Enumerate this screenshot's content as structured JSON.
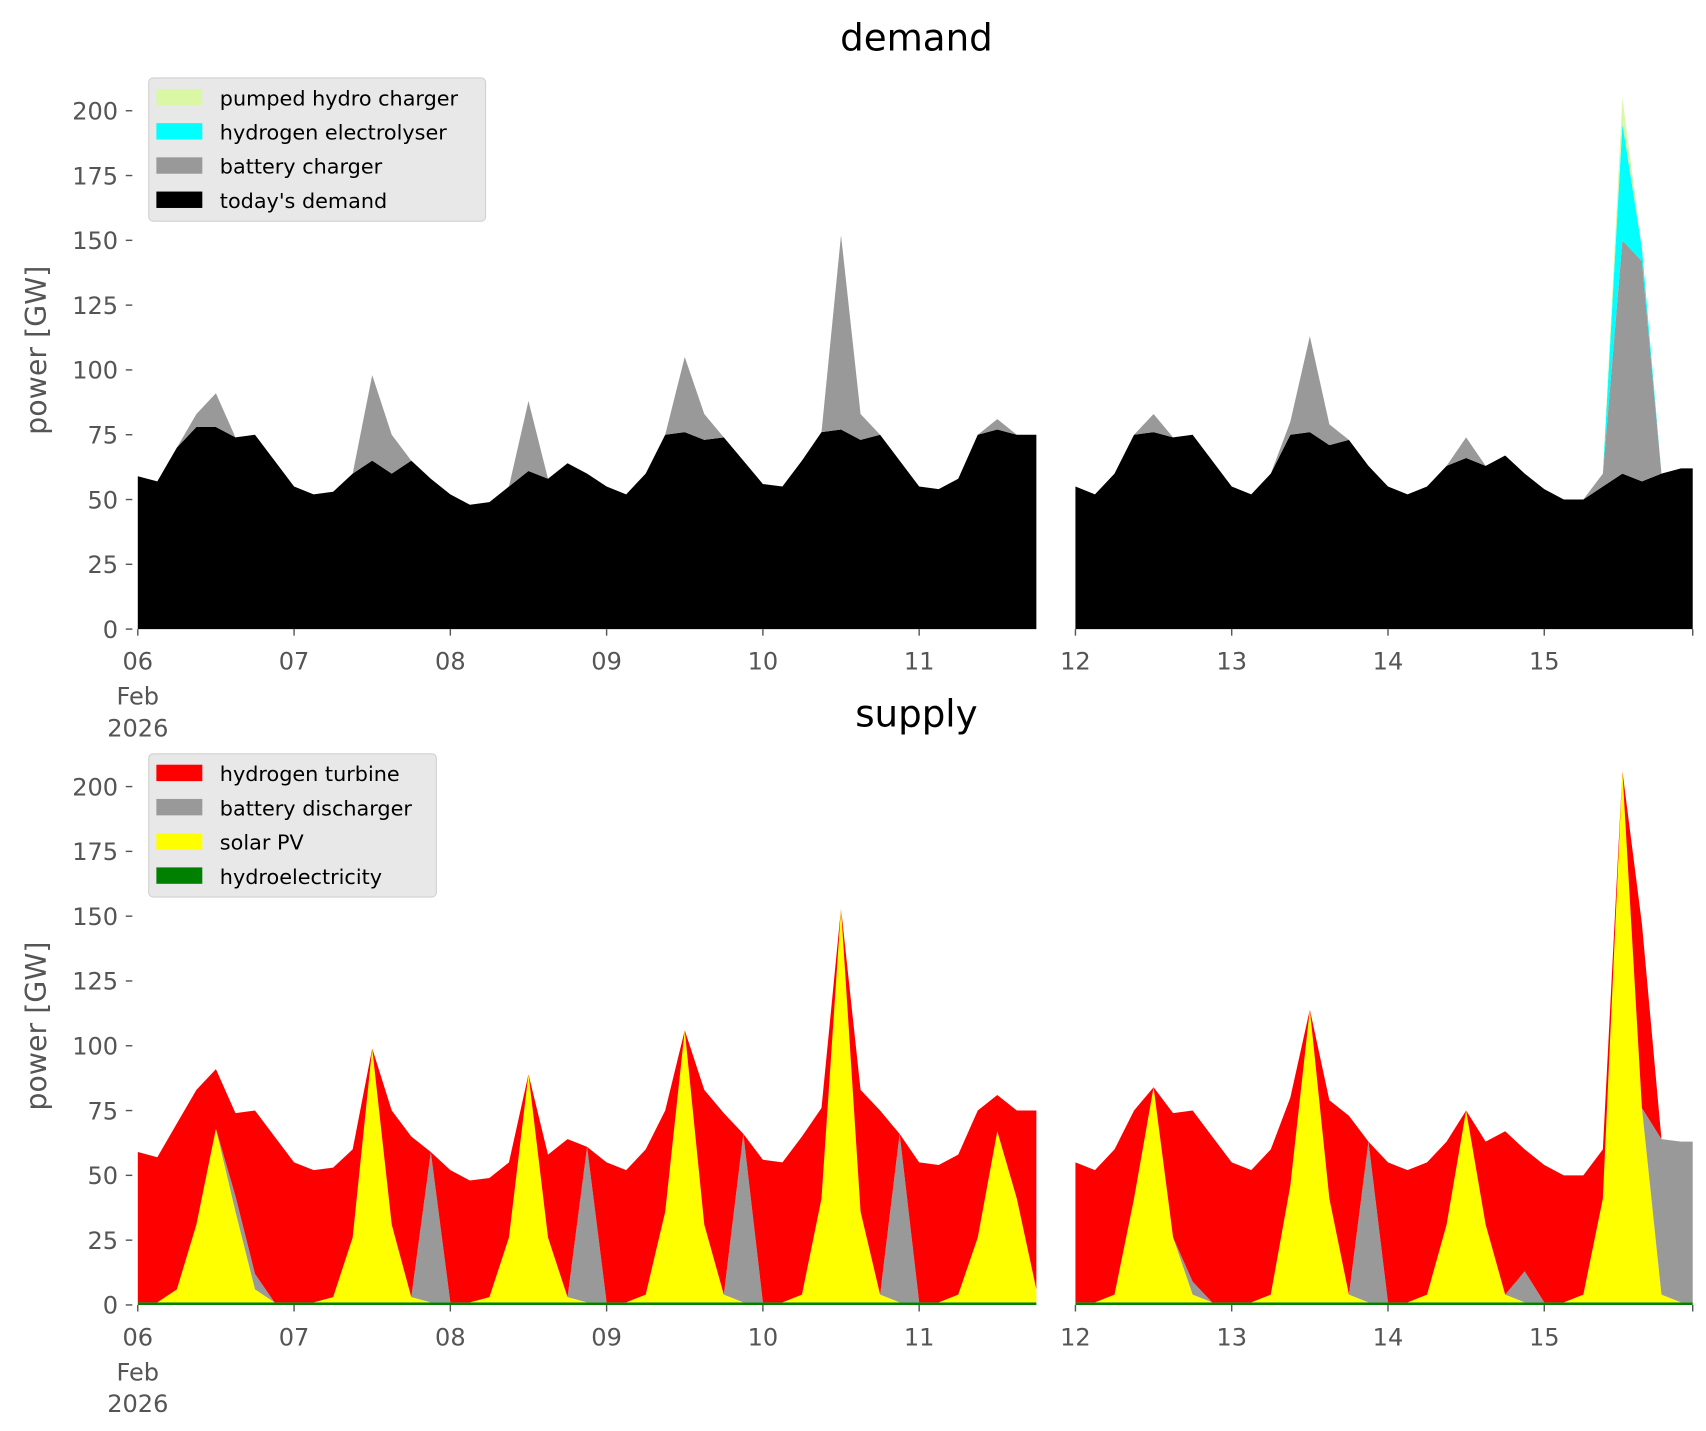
{
  "chart_data": [
    {
      "type": "area",
      "stacked": true,
      "title": "demand",
      "ylabel": "power [GW]",
      "ylim": [
        0,
        215
      ],
      "yticks": [
        0,
        25,
        50,
        75,
        100,
        125,
        150,
        175,
        200
      ],
      "x_start": "2026-02-06T00:00",
      "x_step_hours": 3,
      "xlim_days": [
        0,
        9.95
      ],
      "xtick_labels": [
        "06",
        "07",
        "08",
        "09",
        "10",
        "11",
        "12",
        "13",
        "14",
        "15"
      ],
      "xtick_sublabels": [
        "Feb",
        "2026"
      ],
      "legend_placement": "upper-left",
      "grid": false,
      "series": [
        {
          "name": "today's demand",
          "color": "#000000",
          "values": [
            59,
            57,
            70,
            78,
            78,
            74,
            75,
            65,
            55,
            52,
            53,
            60,
            65,
            60,
            65,
            58,
            52,
            48,
            49,
            55,
            61,
            58,
            64,
            60,
            55,
            52,
            60,
            75,
            76,
            73,
            74,
            65,
            56,
            55,
            65,
            76,
            77,
            73,
            75,
            65,
            55,
            54,
            58,
            75,
            77,
            75,
            75,
            null,
            55,
            52,
            60,
            75,
            76,
            74,
            75,
            65,
            55,
            52,
            60,
            75,
            76,
            71,
            73,
            63,
            55,
            52,
            55,
            63,
            66,
            63,
            67,
            60,
            54,
            50,
            50,
            55,
            60,
            57,
            60,
            62
          ]
        },
        {
          "name": "battery charger",
          "color": "#999999",
          "values": [
            0,
            0,
            0,
            5,
            13,
            0,
            0,
            0,
            0,
            0,
            0,
            0,
            33,
            15,
            0,
            0,
            0,
            0,
            0,
            0,
            27,
            0,
            0,
            0,
            0,
            0,
            0,
            0,
            29,
            10,
            0,
            0,
            0,
            0,
            0,
            0,
            75,
            10,
            0,
            0,
            0,
            0,
            0,
            0,
            4,
            0,
            0,
            null,
            0,
            0,
            0,
            0,
            7,
            0,
            0,
            0,
            0,
            0,
            0,
            5,
            37,
            8,
            0,
            0,
            0,
            0,
            0,
            0,
            8,
            0,
            0,
            0,
            0,
            0,
            0,
            5,
            90,
            85,
            0,
            0
          ]
        },
        {
          "name": "hydrogen electrolyser",
          "color": "#00ffff",
          "values": [
            0,
            0,
            0,
            0,
            0,
            0,
            0,
            0,
            0,
            0,
            0,
            0,
            0,
            0,
            0,
            0,
            0,
            0,
            0,
            0,
            0,
            0,
            0,
            0,
            0,
            0,
            0,
            0,
            0,
            0,
            0,
            0,
            0,
            0,
            0,
            0,
            0,
            0,
            0,
            0,
            0,
            0,
            0,
            0,
            0,
            0,
            0,
            null,
            0,
            0,
            0,
            0,
            0,
            0,
            0,
            0,
            0,
            0,
            0,
            0,
            0,
            0,
            0,
            0,
            0,
            0,
            0,
            0,
            0,
            0,
            0,
            0,
            0,
            0,
            0,
            0,
            45,
            5,
            0,
            0
          ]
        },
        {
          "name": "pumped hydro charger",
          "color": "#daf7a6",
          "values": [
            0,
            0,
            0,
            0,
            0,
            0,
            0,
            0,
            0,
            0,
            0,
            0,
            0,
            0,
            0,
            0,
            0,
            0,
            0,
            0,
            0,
            0,
            0,
            0,
            0,
            0,
            0,
            0,
            0,
            0,
            0,
            0,
            0,
            0,
            0,
            0,
            0,
            0,
            0,
            0,
            0,
            0,
            0,
            0,
            0,
            0,
            0,
            null,
            0,
            0,
            0,
            0,
            0,
            0,
            0,
            0,
            0,
            0,
            0,
            0,
            0,
            0,
            0,
            0,
            0,
            0,
            0,
            0,
            0,
            0,
            0,
            0,
            0,
            0,
            0,
            0,
            10,
            0,
            0,
            0
          ]
        }
      ]
    },
    {
      "type": "area",
      "stacked": true,
      "title": "supply",
      "ylabel": "power [GW]",
      "ylim": [
        0,
        215
      ],
      "yticks": [
        0,
        25,
        50,
        75,
        100,
        125,
        150,
        175,
        200
      ],
      "x_start": "2026-02-06T00:00",
      "x_step_hours": 3,
      "xlim_days": [
        0,
        9.95
      ],
      "xtick_labels": [
        "06",
        "07",
        "08",
        "09",
        "10",
        "11",
        "12",
        "13",
        "14",
        "15"
      ],
      "xtick_sublabels": [
        "Feb",
        "2026"
      ],
      "legend_placement": "upper-left",
      "grid": false,
      "series": [
        {
          "name": "hydroelectricity",
          "color": "#008000",
          "values": [
            1,
            1,
            1,
            1,
            1,
            1,
            1,
            1,
            1,
            1,
            1,
            1,
            1,
            1,
            1,
            1,
            1,
            1,
            1,
            1,
            1,
            1,
            1,
            1,
            1,
            1,
            1,
            1,
            1,
            1,
            1,
            1,
            1,
            1,
            1,
            1,
            1,
            1,
            1,
            1,
            1,
            1,
            1,
            1,
            1,
            1,
            1,
            null,
            1,
            1,
            1,
            1,
            1,
            1,
            1,
            1,
            1,
            1,
            1,
            1,
            1,
            1,
            1,
            1,
            1,
            1,
            1,
            1,
            1,
            1,
            1,
            1,
            1,
            1,
            1,
            1,
            1,
            1,
            1,
            1
          ]
        },
        {
          "name": "solar PV",
          "color": "#ffff00",
          "values": [
            0,
            0,
            5,
            30,
            67,
            35,
            5,
            0,
            0,
            0,
            2,
            25,
            98,
            30,
            2,
            0,
            0,
            0,
            2,
            25,
            88,
            25,
            2,
            0,
            0,
            0,
            3,
            35,
            105,
            30,
            3,
            0,
            0,
            0,
            3,
            40,
            152,
            35,
            3,
            0,
            0,
            0,
            3,
            25,
            66,
            40,
            5,
            null,
            0,
            0,
            3,
            40,
            83,
            25,
            3,
            0,
            0,
            0,
            3,
            45,
            113,
            40,
            3,
            0,
            0,
            0,
            3,
            30,
            74,
            30,
            3,
            0,
            0,
            0,
            3,
            40,
            205,
            75,
            3,
            0
          ]
        },
        {
          "name": "battery discharger",
          "color": "#999999",
          "values": [
            0,
            0,
            0,
            0,
            0,
            6,
            6,
            0,
            0,
            0,
            0,
            0,
            0,
            0,
            0,
            58,
            0,
            0,
            0,
            0,
            0,
            0,
            0,
            60,
            0,
            0,
            0,
            0,
            0,
            0,
            0,
            65,
            0,
            0,
            0,
            0,
            0,
            0,
            0,
            65,
            0,
            0,
            0,
            0,
            0,
            0,
            0,
            null,
            0,
            0,
            0,
            0,
            0,
            0,
            5,
            0,
            0,
            0,
            0,
            0,
            0,
            0,
            0,
            62,
            0,
            0,
            0,
            0,
            0,
            0,
            0,
            12,
            0,
            0,
            0,
            0,
            0,
            0,
            60,
            62
          ]
        },
        {
          "name": "hydrogen turbine",
          "color": "#ff0000",
          "values": [
            58,
            56,
            64,
            52,
            23,
            32,
            63,
            64,
            54,
            51,
            50,
            34,
            0,
            44,
            62,
            0,
            51,
            47,
            46,
            29,
            0,
            32,
            61,
            0,
            54,
            51,
            56,
            39,
            0,
            52,
            70,
            0,
            55,
            54,
            61,
            35,
            0,
            47,
            71,
            0,
            54,
            53,
            54,
            49,
            14,
            34,
            69,
            null,
            54,
            51,
            56,
            34,
            0,
            48,
            66,
            64,
            54,
            51,
            56,
            34,
            0,
            38,
            69,
            0,
            54,
            51,
            51,
            32,
            0,
            32,
            63,
            47,
            53,
            49,
            46,
            19,
            0,
            71,
            0,
            0
          ]
        }
      ]
    }
  ]
}
